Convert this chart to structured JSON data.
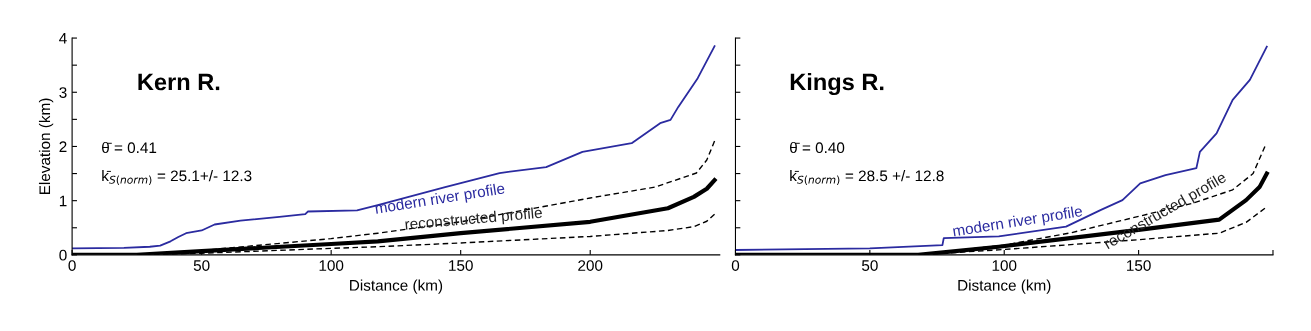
{
  "chart_data": [
    {
      "type": "line",
      "title": "Kern R.",
      "xlabel": "Distance (km)",
      "ylabel": "Elevation (km)",
      "xlim": [
        0,
        250
      ],
      "xticks": [
        0,
        50,
        100,
        150,
        200
      ],
      "ylim": [
        0,
        4
      ],
      "yticks": [
        0,
        {
          "value": 0.5,
          "label": null
        },
        1,
        {
          "value": 1.5,
          "label": null
        },
        2,
        {
          "value": 2.5,
          "label": null
        },
        3,
        {
          "value": 3.5,
          "label": null
        },
        4
      ],
      "grid": false,
      "legend": false,
      "series": [
        {
          "color": "#2b2ba0",
          "line_style": "solid",
          "x": [
            0,
            20,
            30,
            34,
            38,
            41,
            44,
            50,
            55,
            65,
            80,
            90,
            91,
            110,
            118,
            144,
            165,
            183,
            197,
            216,
            227,
            231,
            234,
            241.5,
            248
          ],
          "values": [
            0.12,
            0.13,
            0.15,
            0.17,
            0.25,
            0.33,
            0.4,
            0.45,
            0.56,
            0.63,
            0.7,
            0.75,
            0.8,
            0.82,
            0.92,
            1.25,
            1.51,
            1.62,
            1.9,
            2.06,
            2.43,
            2.49,
            2.73,
            3.26,
            3.85
          ]
        },
        {
          "color": "#000000",
          "line_style": "solid",
          "x": [
            0,
            25,
            50,
            100,
            118,
            150,
            200,
            230,
            240,
            245,
            248
          ],
          "values": [
            0,
            0,
            0.07,
            0.2,
            0.25,
            0.4,
            0.61,
            0.86,
            1.07,
            1.22,
            1.38
          ]
        },
        {
          "color": "#000000",
          "line_style": "dashed",
          "x": [
            25,
            50,
            100,
            118,
            150,
            200,
            225,
            241,
            245,
            248
          ],
          "values": [
            0,
            0.08,
            0.3,
            0.4,
            0.61,
            1.05,
            1.25,
            1.51,
            1.75,
            2.1
          ]
        },
        {
          "color": "#000000",
          "line_style": "dashed",
          "x": [
            25,
            50,
            100,
            118,
            150,
            200,
            230,
            240,
            245,
            248
          ],
          "values": [
            0,
            0.03,
            0.12,
            0.15,
            0.22,
            0.34,
            0.45,
            0.52,
            0.62,
            0.75
          ]
        }
      ],
      "annotations": [
        "θ̄ = 0.41",
        "k̄$_{S(norm)}$ = 25.1+/- 12.3",
        {
          "text": "modern river profile",
          "x": 142,
          "y": 1.25
        },
        {
          "text": "reconstructed profile",
          "x": 155,
          "y": 0.7
        }
      ]
    },
    {
      "type": "line",
      "title": "Kings R.",
      "xlabel": "Distance (km)",
      "xlim": [
        0,
        200
      ],
      "xticks": [
        0,
        50,
        100,
        150,
        {
          "value": 200,
          "label": null
        }
      ],
      "ylim": [
        0,
        4
      ],
      "yticks": [
        0,
        0.5,
        1,
        1.5,
        2,
        2.5,
        3,
        3.5,
        4
      ],
      "tick_labels": "x",
      "grid": false,
      "legend": false,
      "series": [
        {
          "color": "#2b2ba0",
          "line_style": "solid",
          "x": [
            0,
            50,
            77,
            77.5,
            98,
            123,
            136,
            144,
            150.6,
            160,
            171.5,
            172.8,
            179,
            185,
            191.4,
            197.7
          ],
          "values": [
            0.09,
            0.12,
            0.18,
            0.31,
            0.34,
            0.52,
            0.83,
            1.01,
            1.32,
            1.47,
            1.6,
            1.9,
            2.24,
            2.86,
            3.23,
            3.84
          ]
        },
        {
          "color": "#000000",
          "line_style": "solid",
          "x": [
            0,
            68,
            98,
            150,
            180,
            190,
            195,
            197.7
          ],
          "values": [
            0,
            0,
            0.15,
            0.46,
            0.65,
            1.01,
            1.25,
            1.5
          ]
        },
        {
          "color": "#000000",
          "line_style": "dashed",
          "x": [
            68,
            100,
            125,
            150,
            170,
            185,
            192.6,
            197
          ],
          "values": [
            0,
            0.18,
            0.41,
            0.71,
            0.95,
            1.2,
            1.5,
            2.0
          ]
        },
        {
          "color": "#000000",
          "line_style": "dashed",
          "x": [
            68,
            100,
            150,
            180,
            190,
            197
          ],
          "values": [
            0,
            0.1,
            0.28,
            0.4,
            0.6,
            0.86
          ]
        }
      ],
      "annotations": [
        "θ̄ = 0.40",
        "k̄$_{S(norm)}$ = 28.5 +/- 12.8",
        {
          "text": "modern river profile",
          "x": 105,
          "y": 0.37
        },
        {
          "text": "reconstructed profile",
          "x": 160,
          "y": 0.85
        }
      ]
    }
  ]
}
